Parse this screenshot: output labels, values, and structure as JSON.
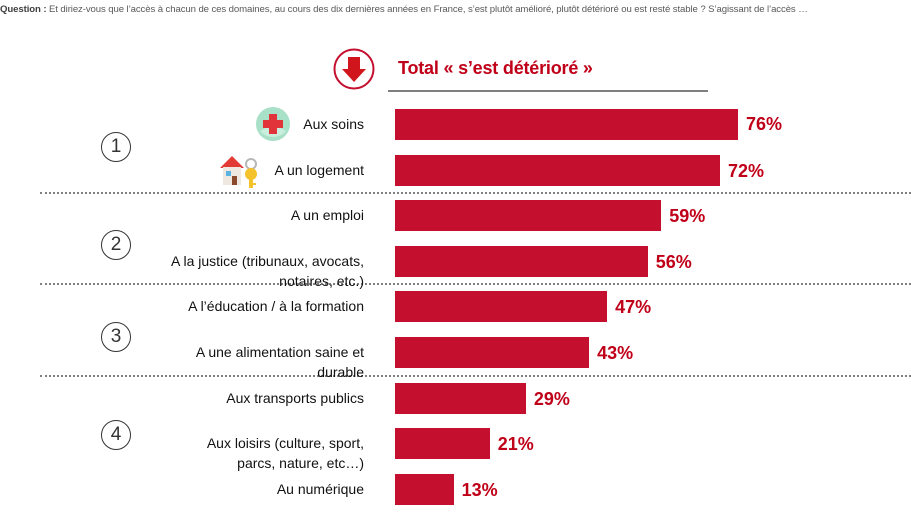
{
  "question": {
    "prefix": "Question :",
    "text": " Et diriez-vous que l’accès à chacun de ces domaines, au cours des dix dernières années en France, s’est plutôt amélioré, plutôt détérioré ou est resté stable ? S’agissant de l’accès …"
  },
  "header": {
    "icon": "down-arrow-circle-icon",
    "title": "Total « s’est détérioré »"
  },
  "colors": {
    "bar": "#c4102e",
    "value_text": "#c00018",
    "divider": "#7f7f7f"
  },
  "groups": [
    "1",
    "2",
    "3",
    "4"
  ],
  "chart_data": {
    "type": "bar",
    "orientation": "horizontal",
    "title": "Total « s’est détérioré »",
    "unit": "%",
    "xlim": [
      0,
      100
    ],
    "grid": false,
    "categories": [
      [
        "Aux soins"
      ],
      [
        "A un logement"
      ],
      [
        "A un emploi"
      ],
      [
        "A la justice (tribunaux, avocats,",
        "notaires, etc.)"
      ],
      [
        "A l’éducation / à la formation"
      ],
      [
        "A une alimentation saine et",
        "durable"
      ],
      [
        "Aux transports publics"
      ],
      [
        "Aux loisirs (culture, sport,",
        "parcs, nature, etc…)"
      ],
      [
        "Au numérique"
      ]
    ],
    "values": [
      76,
      72,
      59,
      56,
      47,
      43,
      29,
      21,
      13
    ],
    "value_labels": [
      "76%",
      "72%",
      "59%",
      "56%",
      "47%",
      "43%",
      "29%",
      "21%",
      "13%"
    ],
    "group_of_category": [
      1,
      1,
      2,
      2,
      3,
      3,
      4,
      4,
      4
    ],
    "category_icons": [
      "medical-cross-icon",
      "house-key-icon",
      null,
      null,
      null,
      null,
      null,
      null,
      null
    ]
  }
}
